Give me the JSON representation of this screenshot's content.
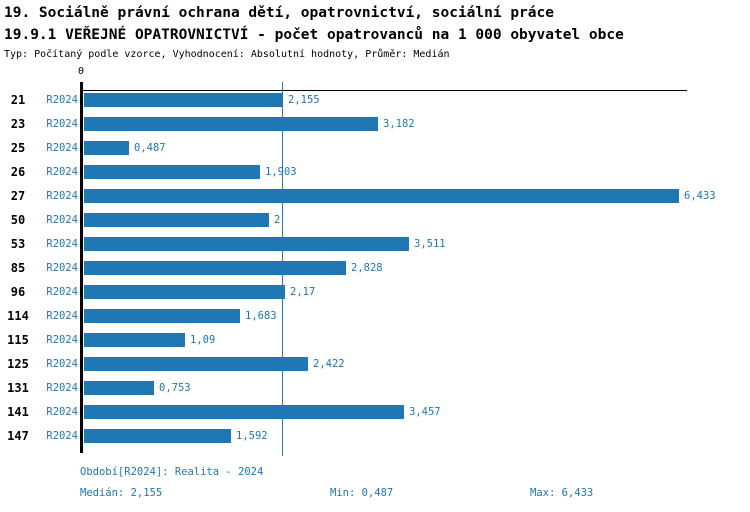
{
  "header": {
    "title_line1": "19. Sociálně právní ochrana dětí, opatrovnictví, sociální práce",
    "title_line2": "19.9.1 VEŘEJNÉ OPATROVNICTVÍ - počet opatrovanců na 1 000 obyvatel obce",
    "meta_line": "Typ: Počítaný podle vzorce, Vyhodnocení: Absolutní hodnoty, Průměr: Medián"
  },
  "chart_data": {
    "type": "bar",
    "orientation": "horizontal",
    "title": "19.9.1 VEŘEJNÉ OPATROVNICTVÍ - počet opatrovanců na 1 000 obyvatel obce",
    "categories": [
      "21",
      "23",
      "25",
      "26",
      "27",
      "50",
      "53",
      "85",
      "96",
      "114",
      "115",
      "125",
      "131",
      "141",
      "147"
    ],
    "series_label": "R2024",
    "values": [
      2.155,
      3.182,
      0.487,
      1.903,
      6.433,
      2,
      3.511,
      2.828,
      2.17,
      1.683,
      1.09,
      2.422,
      0.753,
      3.457,
      1.592
    ],
    "value_labels": [
      "2,155",
      "3,182",
      "0,487",
      "1,903",
      "6,433",
      "2",
      "3,511",
      "2,828",
      "2,17",
      "1,683",
      "1,09",
      "2,422",
      "0,753",
      "3,457",
      "1,592"
    ],
    "x_axis": {
      "tick_label": "0",
      "min": 0,
      "max": 6.5
    },
    "median_value": 2.155,
    "grid": "median-line-only",
    "legend": "none",
    "bar_color": "#1f77b4"
  },
  "footer": {
    "period": "Období[R2024]: Realita - 2024",
    "median": "Medián: 2,155",
    "min": "Min: 0,487",
    "max": "Max: 6,433"
  },
  "colors": {
    "accent": "#1f77b4",
    "text": "#000000",
    "background": "#ffffff"
  }
}
